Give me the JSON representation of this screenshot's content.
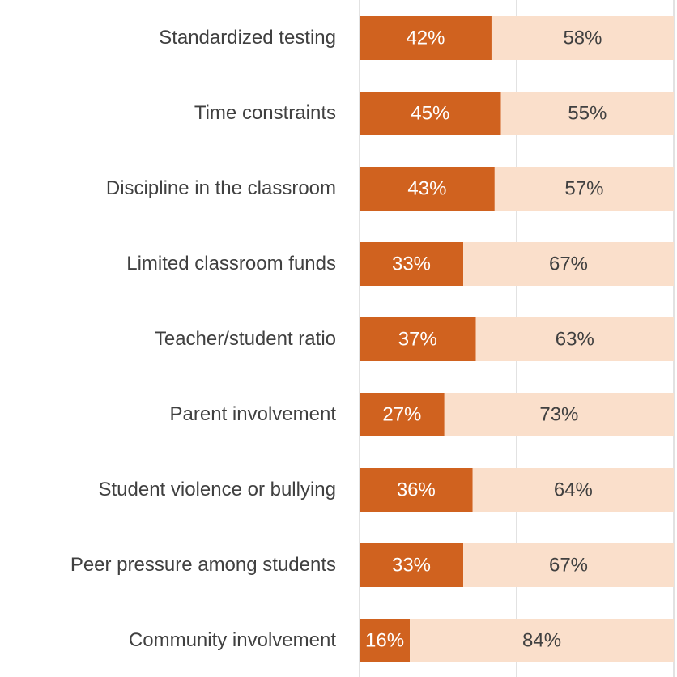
{
  "chart_data": {
    "type": "stacked_bar_horizontal",
    "categories": [
      "Standardized testing",
      "Time constraints",
      "Discipline in the classroom",
      "Limited classroom funds",
      "Teacher/student ratio",
      "Parent involvement",
      "Student violence or bullying",
      "Peer pressure among students",
      "Community involvement"
    ],
    "series": [
      {
        "color": "#d0621f",
        "values": [
          42,
          45,
          43,
          33,
          37,
          27,
          36,
          33,
          16
        ],
        "value_labels": [
          "42%",
          "45%",
          "43%",
          "33%",
          "37%",
          "27%",
          "36%",
          "33%",
          "16%"
        ]
      },
      {
        "color": "#fadfcb",
        "values": [
          58,
          55,
          57,
          67,
          63,
          73,
          64,
          67,
          84
        ],
        "value_labels": [
          "58%",
          "55%",
          "57%",
          "67%",
          "63%",
          "73%",
          "64%",
          "67%",
          "84%"
        ]
      }
    ],
    "xlim": [
      0,
      100
    ],
    "xticks": [
      0,
      50,
      100
    ],
    "grid": true
  }
}
